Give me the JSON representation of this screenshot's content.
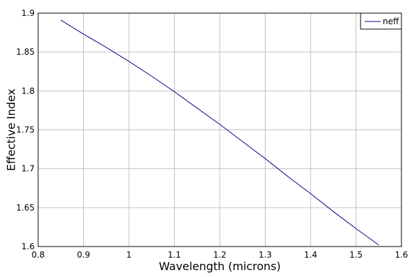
{
  "chart_data": {
    "type": "line",
    "title": "",
    "xlabel": "Wavelength (microns)",
    "ylabel": "Effective Index",
    "xlim": [
      0.8,
      1.6
    ],
    "ylim": [
      1.6,
      1.9
    ],
    "grid": true,
    "legend_position": "top-right",
    "x_ticks": [
      0.8,
      0.9,
      1.0,
      1.1,
      1.2,
      1.3,
      1.4,
      1.5,
      1.6
    ],
    "x_tick_labels": [
      "0.8",
      "0.9",
      "1",
      "1.1",
      "1.2",
      "1.3",
      "1.4",
      "1.5",
      "1.6"
    ],
    "y_ticks": [
      1.6,
      1.65,
      1.7,
      1.75,
      1.8,
      1.85,
      1.9
    ],
    "y_tick_labels": [
      "1.6",
      "1.65",
      "1.7",
      "1.75",
      "1.8",
      "1.85",
      "1.9"
    ],
    "series": [
      {
        "name": "neff",
        "color": "#00008b",
        "x": [
          0.85,
          0.9,
          0.95,
          1.0,
          1.05,
          1.1,
          1.15,
          1.2,
          1.25,
          1.3,
          1.35,
          1.4,
          1.45,
          1.5,
          1.55
        ],
        "y": [
          1.891,
          1.873,
          1.856,
          1.838,
          1.819,
          1.799,
          1.778,
          1.757,
          1.735,
          1.713,
          1.69,
          1.668,
          1.645,
          1.623,
          1.602
        ]
      }
    ]
  }
}
